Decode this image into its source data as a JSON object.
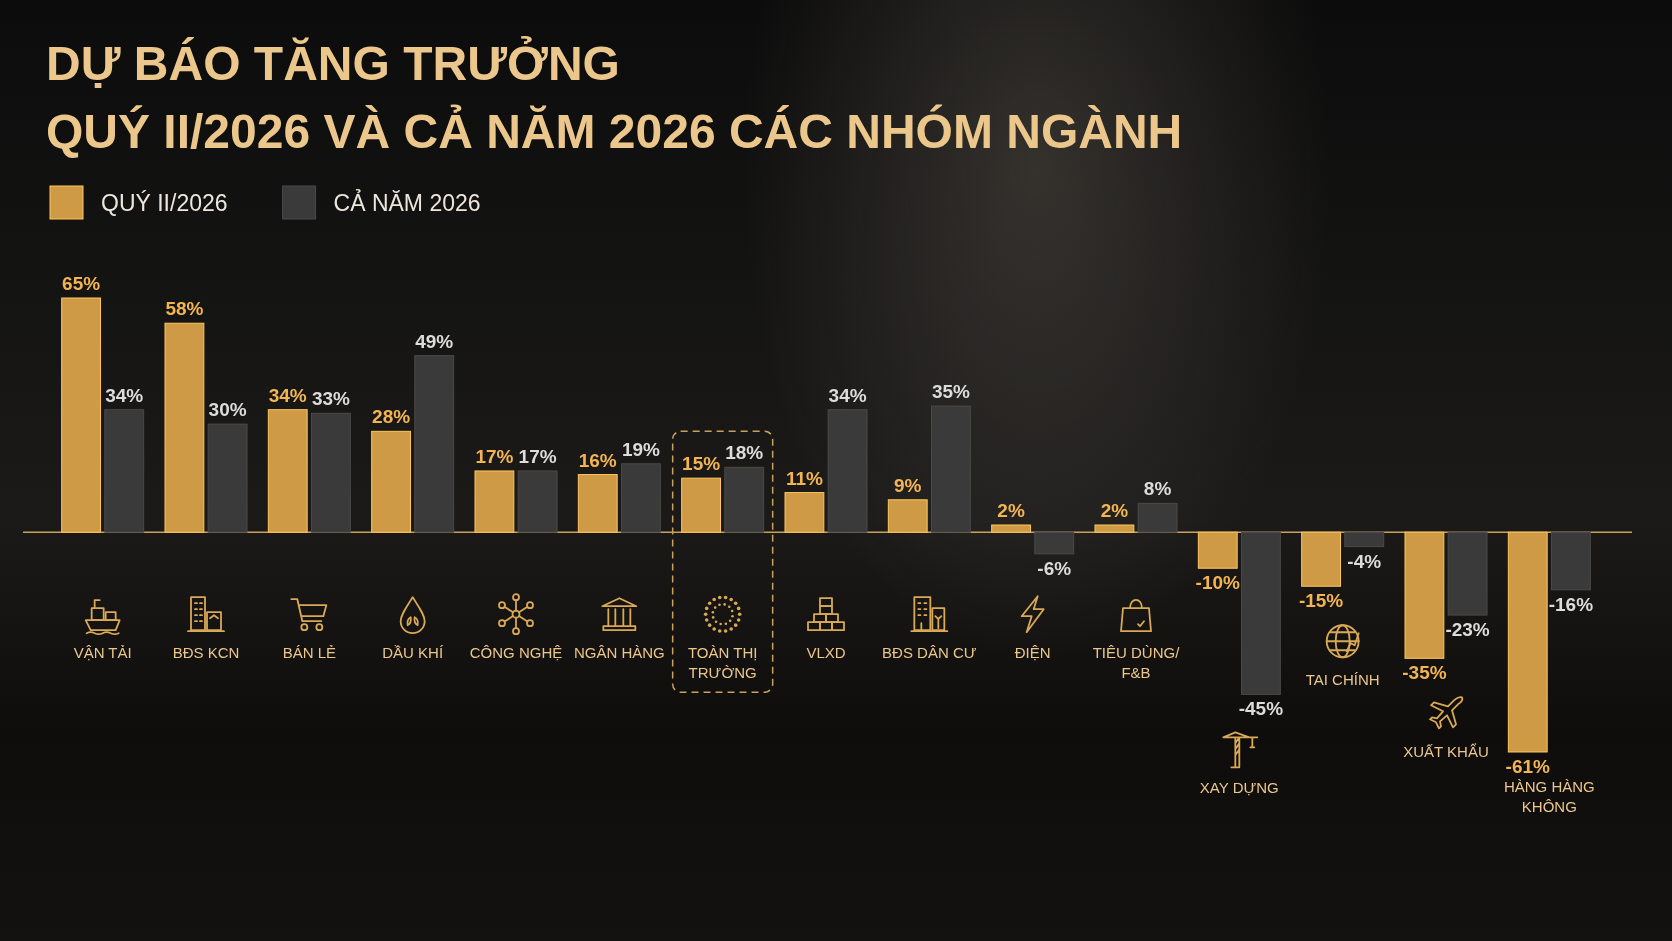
{
  "chart_data": {
    "type": "bar",
    "title": "DỰ BÁO TĂNG TRƯỞNG",
    "subtitle": "QUÝ II/2026 VÀ CẢ NĂM 2026 CÁC NHÓM NGÀNH",
    "categories": [
      "VẬN TẢI",
      "BĐS KCN",
      "BÁN LẺ",
      "DẦU KHÍ",
      "CÔNG NGHỆ",
      "NGÂN HÀNG",
      "TOÀN THỊ TRƯỜNG",
      "VLXD",
      "BĐS DÂN CƯ",
      "ĐIỆN",
      "TIÊU DÙNG/ F&B",
      "XAY DỰNG",
      "TAI CHÍNH",
      "XUẤT KHẨU",
      "HÀNG HÀNG KHÔNG"
    ],
    "series": [
      {
        "name": "QUÝ II/2026",
        "color": "#cf9a46",
        "values": [
          65,
          58,
          34,
          28,
          17,
          16,
          15,
          11,
          9,
          2,
          2,
          -10,
          -15,
          -35,
          -61
        ],
        "value_labels": [
          "65%",
          "58%",
          "34%",
          "28%",
          "17%",
          "16%",
          "15%",
          "11%",
          "9%",
          "2%",
          "2%",
          "-10%",
          "-15%",
          "-35%",
          "-61%"
        ]
      },
      {
        "name": "CẢ NĂM 2026",
        "color": "#3a3a3a",
        "values": [
          34,
          30,
          33,
          49,
          17,
          19,
          18,
          34,
          35,
          -6,
          8,
          -45,
          -4,
          -23,
          -16
        ],
        "value_labels": [
          "34%",
          "30%",
          "33%",
          "49%",
          "17%",
          "19%",
          "18%",
          "34%",
          "35%",
          "-6%",
          "8%",
          "-45%",
          "-4%",
          "-23%",
          "-16%"
        ]
      }
    ],
    "ref_lines": [
      {
        "axis": "y",
        "value": 0,
        "color": "#c9a15a"
      }
    ],
    "legend": "top left"
  }
}
